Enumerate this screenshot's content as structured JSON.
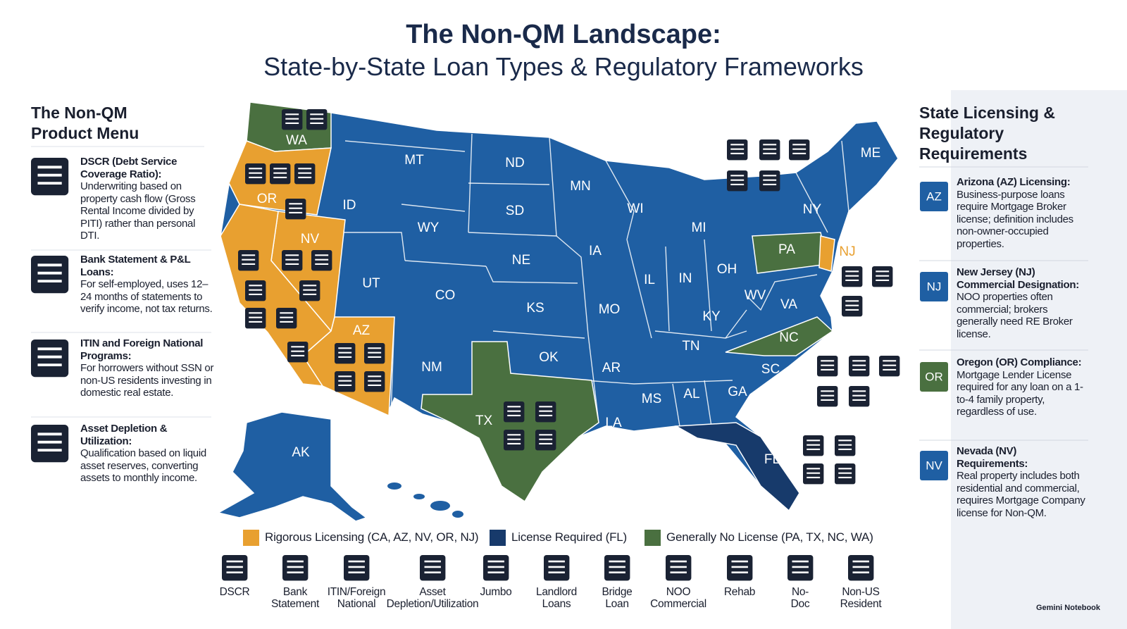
{
  "header": {
    "title": "The Non-QM Landscape:",
    "subtitle": "State-by-State Loan Types & Regulatory Frameworks"
  },
  "product_menu": {
    "title": "The Non-QM Product Menu",
    "items": [
      {
        "heading": "DSCR (Debt Service Coverage Ratio):",
        "text": "Underwriting based on property cash flow (Gross Rental Income divided by PITI) rather than personal DTI."
      },
      {
        "heading": "Bank Statement & P&L Loans:",
        "text": "For self-employed, uses 12–24 months of statements to verify income, not tax returns."
      },
      {
        "heading": "ITIN and Foreign National Programs:",
        "text": "For horrowers without SSN or non-US residents investing in domestic real estate."
      },
      {
        "heading": "Asset Depletion & Utilization:",
        "text": "Qualification based on liquid asset reserves, converting assets to monthly income."
      }
    ]
  },
  "regulatory": {
    "title": "State Licensing & Regulatory Requirements",
    "items": [
      {
        "badge": "AZ",
        "heading": "Arizona (AZ) Licensing:",
        "text": "Business-purpose loans require Mortgage Broker license; definition includes non-owner-occupied properties."
      },
      {
        "badge": "NJ",
        "heading": "New Jersey (NJ) Commercial Designation:",
        "text": "NOO properties often commercial; brokers generally need RE Broker license."
      },
      {
        "badge": "OR",
        "heading": "Oregon (OR) Compliance:",
        "text": "Mortgage Lender License required for any loan on a 1-to-4 family property, regardless of use."
      },
      {
        "badge": "NV",
        "heading": "Nevada (NV) Requirements:",
        "text": "Real property includes both residential and commercial, requires Mortgage Company license for Non-QM."
      }
    ]
  },
  "map": {
    "states": [
      {
        "label": "WA",
        "color": "#4a7040"
      },
      {
        "label": "OR",
        "color": "#e8a030"
      },
      {
        "label": "NV",
        "color": "#e8a030"
      },
      {
        "label": "AZ",
        "color": "#e8a030"
      },
      {
        "label": "MT",
        "color": "#1f5fa3"
      },
      {
        "label": "ID",
        "color": "#1f5fa3"
      },
      {
        "label": "WY",
        "color": "#1f5fa3"
      },
      {
        "label": "UT",
        "color": "#1f5fa3"
      },
      {
        "label": "CO",
        "color": "#1f5fa3"
      },
      {
        "label": "NM",
        "color": "#1f5fa3"
      },
      {
        "label": "ND",
        "color": "#1f5fa3"
      },
      {
        "label": "SD",
        "color": "#1f5fa3"
      },
      {
        "label": "NE",
        "color": "#1f5fa3"
      },
      {
        "label": "KS",
        "color": "#1f5fa3"
      },
      {
        "label": "OK",
        "color": "#1f5fa3"
      },
      {
        "label": "TX",
        "color": "#4a7040"
      },
      {
        "label": "MN",
        "color": "#1f5fa3"
      },
      {
        "label": "IA",
        "color": "#1f5fa3"
      },
      {
        "label": "MO",
        "color": "#1f5fa3"
      },
      {
        "label": "AR",
        "color": "#1f5fa3"
      },
      {
        "label": "LA",
        "color": "#1f5fa3"
      },
      {
        "label": "WI",
        "color": "#1f5fa3"
      },
      {
        "label": "MI",
        "color": "#1f5fa3"
      },
      {
        "label": "IL",
        "color": "#1f5fa3"
      },
      {
        "label": "IN",
        "color": "#1f5fa3"
      },
      {
        "label": "OH",
        "color": "#1f5fa3"
      },
      {
        "label": "KY",
        "color": "#1f5fa3"
      },
      {
        "label": "TN",
        "color": "#1f5fa3"
      },
      {
        "label": "MS",
        "color": "#1f5fa3"
      },
      {
        "label": "AL",
        "color": "#1f5fa3"
      },
      {
        "label": "GA",
        "color": "#1f5fa3"
      },
      {
        "label": "FL",
        "color": "#173a6b"
      },
      {
        "label": "SC",
        "color": "#1f5fa3"
      },
      {
        "label": "NC",
        "color": "#4a7040"
      },
      {
        "label": "VA",
        "color": "#1f5fa3"
      },
      {
        "label": "WV",
        "color": "#1f5fa3"
      },
      {
        "label": "PA",
        "color": "#4a7040"
      },
      {
        "label": "NJ",
        "color": "#e8a030"
      },
      {
        "label": "NY",
        "color": "#1f5fa3"
      },
      {
        "label": "ME",
        "color": "#1f5fa3"
      },
      {
        "label": "AK",
        "color": "#1f5fa3"
      }
    ]
  },
  "legend": [
    {
      "label": "Rigorous Licensing (CA, AZ, NV, OR, NJ)",
      "color": "#e8a030"
    },
    {
      "label": "License Required (FL)",
      "color": "#173a6b"
    },
    {
      "label": "Generally No License (PA, TX, NC, WA)",
      "color": "#4a7040"
    }
  ],
  "icon_bar": [
    "DSCR",
    "Bank Statement",
    "ITIN/Foreign National",
    "Asset Depletion/Utilization",
    "Jumbo",
    "Landlord Loans",
    "Bridge Loan",
    "NOO Commercial",
    "Rehab",
    "No-Doc",
    "Non-US Resident"
  ],
  "watermark": "Gemini Notebook"
}
